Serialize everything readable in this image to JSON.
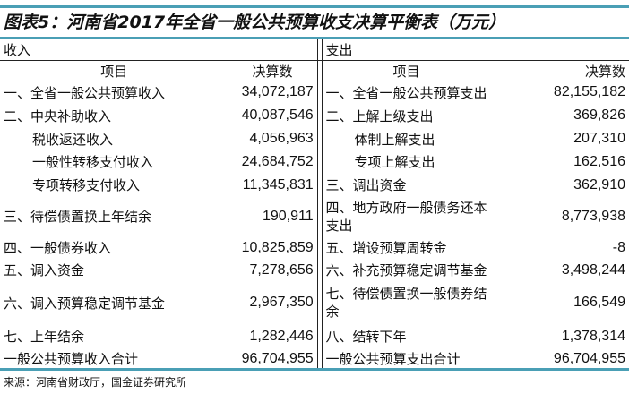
{
  "title": "图表5：河南省2017年全省一般公共预算收支决算平衡表（万元）",
  "income": {
    "section": "收入",
    "col_item": "项目",
    "col_value": "决算数"
  },
  "expense": {
    "section": "支出",
    "col_item": "项目",
    "col_value": "决算数"
  },
  "rows": [
    {
      "il": "一、全省一般公共预算收入",
      "iv": "34,072,187",
      "el": "一、全省一般公共预算支出",
      "ev": "82,155,182"
    },
    {
      "il": "二、中央补助收入",
      "iv": "40,087,546",
      "el": "二、上解上级支出",
      "ev": "369,826"
    },
    {
      "il": "税收返还收入",
      "iv": "4,056,963",
      "el": "体制上解支出",
      "ev": "207,310"
    },
    {
      "il": "一般性转移支付收入",
      "iv": "24,684,752",
      "el": "专项上解支出",
      "ev": "162,516"
    },
    {
      "il": "专项转移支付收入",
      "iv": "11,345,831",
      "el": "三、调出资金",
      "ev": "362,910"
    },
    {
      "il": "三、待偿债置换上年结余",
      "iv": "190,911",
      "el": "四、地方政府一般债务还本支出",
      "ev": "8,773,938"
    },
    {
      "il": "四、一般债券收入",
      "iv": "10,825,859",
      "el": "五、增设预算周转金",
      "ev": "-8"
    },
    {
      "il": "五、调入资金",
      "iv": "7,278,656",
      "el": "六、补充预算稳定调节基金",
      "ev": "3,498,244"
    },
    {
      "il": "六、调入预算稳定调节基金",
      "iv": "2,967,350",
      "el": "七、待偿债置换一般债券结余",
      "ev": "166,549"
    },
    {
      "il": "七、上年结余",
      "iv": "1,282,446",
      "el": "八、结转下年",
      "ev": "1,378,314"
    },
    {
      "il": "一般公共预算收入合计",
      "iv": "96,704,955",
      "el": "一般公共预算支出合计",
      "ev": "96,704,955"
    }
  ],
  "source": "来源：河南省财政厅，国金证券研究所"
}
